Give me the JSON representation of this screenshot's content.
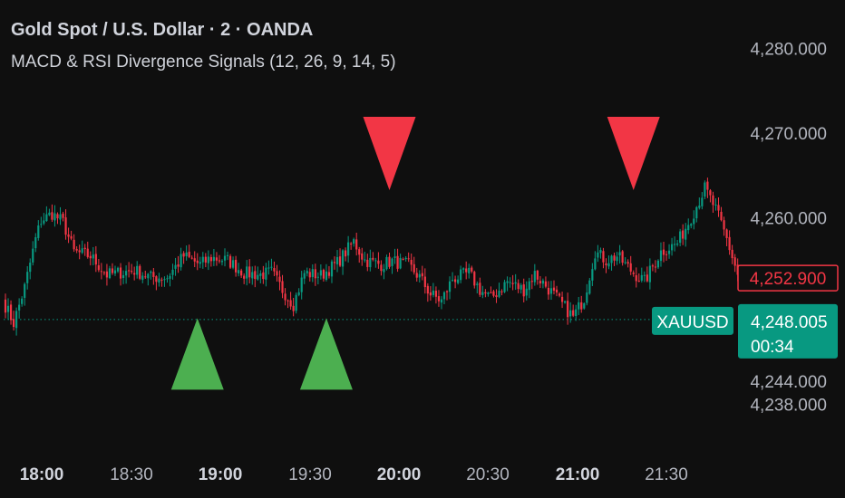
{
  "header": {
    "title": "Gold Spot / U.S. Dollar · 2 · OANDA",
    "indicator": "MACD & RSI Divergence Signals (12, 26, 9, 14, 5)"
  },
  "chart_data": {
    "type": "candlestick",
    "symbol": "XAUUSD",
    "ylim": [
      4235.5,
      4282.5
    ],
    "y_ticks": [
      {
        "value": 4280,
        "label": "4,280.000"
      },
      {
        "value": 4270,
        "label": "4,270.000"
      },
      {
        "value": 4260,
        "label": "4,260.000"
      },
      {
        "value": 4238,
        "label": "4,238.000"
      }
    ],
    "x_ticks": [
      {
        "label": "18:00",
        "bold": true
      },
      {
        "label": "18:30",
        "bold": false
      },
      {
        "label": "19:00",
        "bold": true
      },
      {
        "label": "19:30",
        "bold": false
      },
      {
        "label": "20:00",
        "bold": true
      },
      {
        "label": "20:30",
        "bold": false
      },
      {
        "label": "21:00",
        "bold": true
      },
      {
        "label": "21:30",
        "bold": false
      }
    ],
    "waypoints": [
      [
        0,
        4250.3
      ],
      [
        4,
        4247.6
      ],
      [
        8,
        4251.8
      ],
      [
        12,
        4257.5
      ],
      [
        14,
        4259.7
      ],
      [
        18,
        4260.5
      ],
      [
        22,
        4259.5
      ],
      [
        26,
        4256.0
      ],
      [
        32,
        4255.5
      ],
      [
        38,
        4253.3
      ],
      [
        44,
        4253.6
      ],
      [
        48,
        4253.8
      ],
      [
        54,
        4253.0
      ],
      [
        60,
        4253.0
      ],
      [
        66,
        4255.5
      ],
      [
        72,
        4254.5
      ],
      [
        76,
        4255.3
      ],
      [
        82,
        4255.0
      ],
      [
        88,
        4253.5
      ],
      [
        94,
        4253.3
      ],
      [
        98,
        4253.6
      ],
      [
        102,
        4251.5
      ],
      [
        106,
        4249.8
      ],
      [
        110,
        4253.5
      ],
      [
        116,
        4253.2
      ],
      [
        122,
        4254.7
      ],
      [
        128,
        4257.2
      ],
      [
        132,
        4255.0
      ],
      [
        138,
        4254.5
      ],
      [
        142,
        4254.9
      ],
      [
        148,
        4254.4
      ],
      [
        152,
        4253.0
      ],
      [
        156,
        4251.0
      ],
      [
        160,
        4250.2
      ],
      [
        164,
        4252.8
      ],
      [
        170,
        4253.5
      ],
      [
        174,
        4251.5
      ],
      [
        178,
        4250.5
      ],
      [
        184,
        4252.5
      ],
      [
        190,
        4251.5
      ],
      [
        194,
        4253.4
      ],
      [
        198,
        4252.0
      ],
      [
        204,
        4249.8
      ],
      [
        208,
        4248.3
      ],
      [
        212,
        4250.5
      ],
      [
        216,
        4256.0
      ],
      [
        220,
        4255.0
      ],
      [
        224,
        4255.5
      ],
      [
        230,
        4253.5
      ],
      [
        234,
        4252.5
      ],
      [
        240,
        4256.0
      ],
      [
        246,
        4257.0
      ],
      [
        252,
        4260.7
      ],
      [
        256,
        4263.5
      ],
      [
        260,
        4261.0
      ],
      [
        264,
        4257.5
      ],
      [
        268,
        4253.3
      ]
    ],
    "candle_count": 269,
    "last_price_label": "4,252.900",
    "last_price_value": 4252.9,
    "bid_price_label": "4,248.005",
    "bid_price_value": 4248.005,
    "countdown": "00:34",
    "hidden_axis_label": "4,244.000",
    "signals": [
      {
        "type": "sell",
        "index": 140,
        "price": 4268.4
      },
      {
        "type": "sell",
        "index": 229,
        "price": 4268.4
      },
      {
        "type": "buy",
        "index": 70,
        "price": 4242.4
      },
      {
        "type": "buy",
        "index": 117,
        "price": 4242.4
      }
    ],
    "colors": {
      "up": "#089981",
      "down": "#f23645",
      "buy_signal": "#4caf50",
      "sell_signal": "#f23645",
      "text": "#d1d4dc",
      "axis_text": "#b2b5be",
      "background": "#0f0f0f",
      "bid_line": "#089981"
    }
  }
}
